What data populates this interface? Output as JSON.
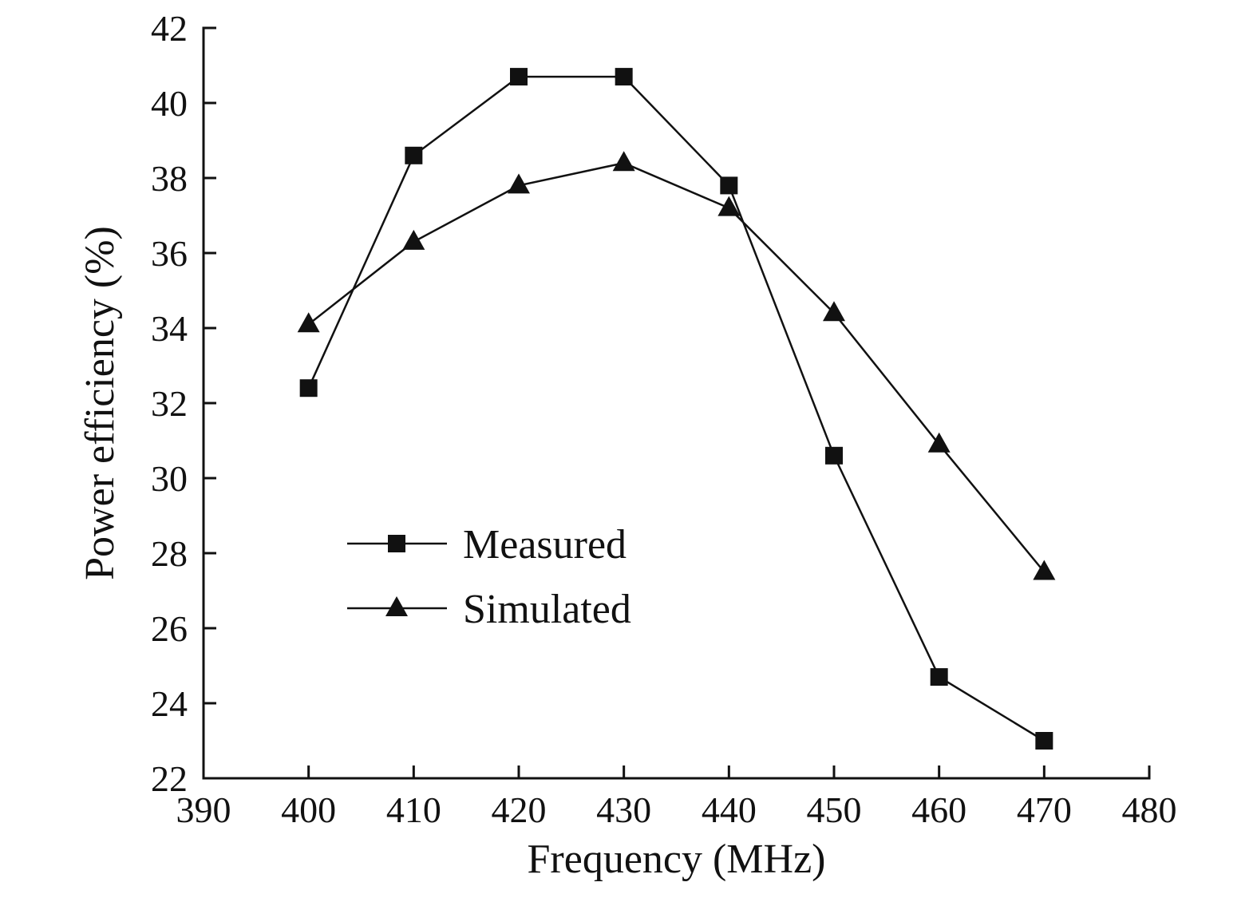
{
  "chart_data": {
    "type": "line",
    "x": [
      400,
      410,
      420,
      430,
      440,
      450,
      460,
      470
    ],
    "series": [
      {
        "name": "Measured",
        "marker": "square",
        "values": [
          32.4,
          38.6,
          40.7,
          40.7,
          37.8,
          30.6,
          24.7,
          23.0
        ]
      },
      {
        "name": "Simulated",
        "marker": "triangle",
        "values": [
          34.1,
          36.3,
          37.8,
          38.4,
          37.2,
          34.4,
          30.9,
          27.5
        ]
      }
    ],
    "title": "",
    "xlabel": "Frequency (MHz)",
    "ylabel": "Power efficiency (%)",
    "xlim": [
      390,
      480
    ],
    "ylim": [
      22,
      42
    ],
    "xticks": [
      390,
      400,
      410,
      420,
      430,
      440,
      450,
      460,
      470,
      480
    ],
    "yticks": [
      22,
      24,
      26,
      28,
      30,
      32,
      34,
      36,
      38,
      40,
      42
    ],
    "grid": false,
    "legend_position": "inside-left-middle",
    "line_color": "#111111",
    "background": "#ffffff"
  }
}
